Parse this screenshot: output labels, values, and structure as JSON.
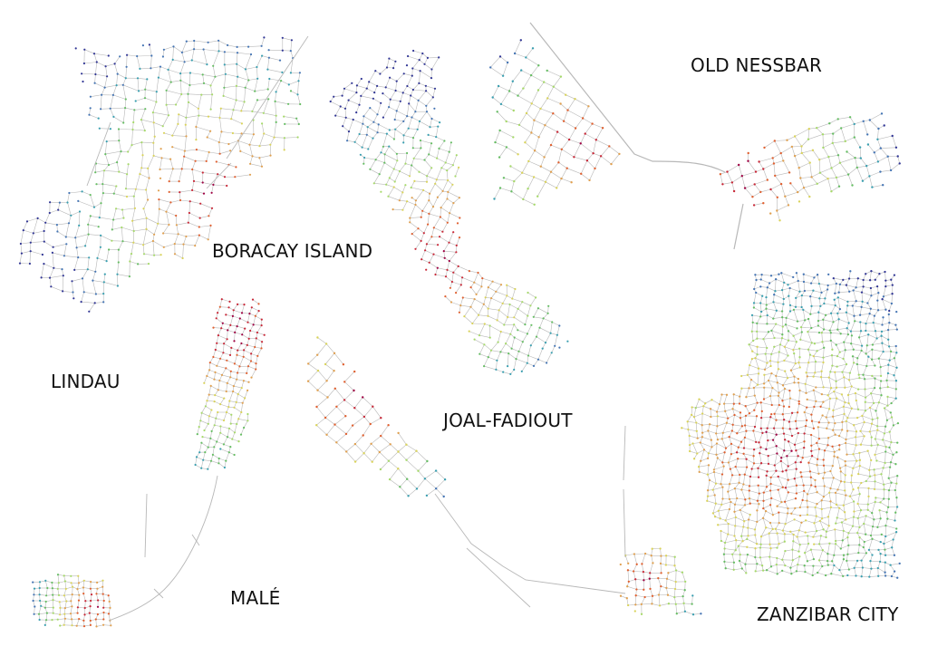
{
  "labels": {
    "boracay": "BORACAY ISLAND",
    "nessbar": "OLD NESSBAR",
    "lindau": "LINDAU",
    "joal": "JOAL-FADIOUT",
    "male": "MALÉ",
    "zanzibar": "ZANZIBAR CITY"
  },
  "palette": [
    "#313695",
    "#4575b4",
    "#3a9fb0",
    "#66bd63",
    "#a6d96a",
    "#d9d35a",
    "#e0a050",
    "#e06030",
    "#c82838",
    "#9e0142"
  ],
  "edge_color": "#b8b8b8"
}
